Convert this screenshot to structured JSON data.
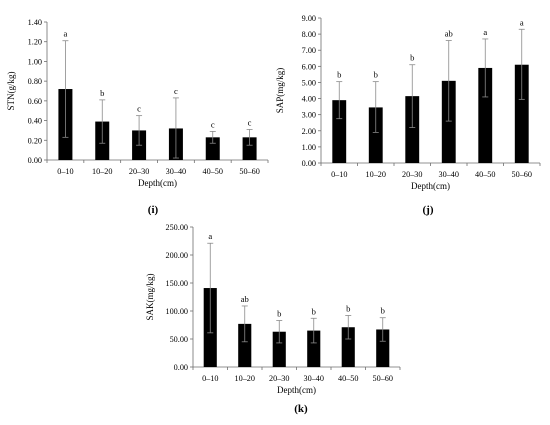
{
  "chart_data": [
    {
      "type": "bar",
      "panel_label": "(i)",
      "categories": [
        "0–10",
        "10–20",
        "20–30",
        "30–40",
        "40–50",
        "50–60"
      ],
      "values": [
        0.72,
        0.39,
        0.3,
        0.32,
        0.23,
        0.23
      ],
      "error_upper": [
        1.21,
        0.61,
        0.45,
        0.63,
        0.29,
        0.31
      ],
      "error_lower": [
        0.23,
        0.17,
        0.15,
        0.02,
        0.17,
        0.15
      ],
      "significance_letters": [
        "a",
        "b",
        "c",
        "c",
        "c",
        "c"
      ],
      "ylabel": "STN(g/kg)",
      "xlabel": "Depth(cm)",
      "ylim": [
        0,
        1.4
      ],
      "yticks": [
        "0.00",
        "0.20",
        "0.40",
        "0.60",
        "0.80",
        "1.00",
        "1.20",
        "1.40"
      ],
      "grid": false,
      "legend": "none",
      "bar_color": "#000000"
    },
    {
      "type": "bar",
      "panel_label": "(j)",
      "categories": [
        "0–10",
        "10–20",
        "20–30",
        "30–40",
        "40–50",
        "50–60"
      ],
      "values": [
        3.9,
        3.45,
        4.15,
        5.1,
        5.9,
        6.1
      ],
      "error_upper": [
        5.05,
        5.05,
        6.1,
        7.6,
        7.7,
        8.3
      ],
      "error_lower": [
        2.75,
        1.9,
        2.2,
        2.6,
        4.1,
        3.95
      ],
      "significance_letters": [
        "b",
        "b",
        "b",
        "ab",
        "a",
        "a"
      ],
      "ylabel": "SAP(mg/kg)",
      "xlabel": "Depth(cm)",
      "ylim": [
        0,
        9
      ],
      "yticks": [
        "0.00",
        "1.00",
        "2.00",
        "3.00",
        "4.00",
        "5.00",
        "6.00",
        "7.00",
        "8.00",
        "9.00"
      ],
      "grid": false,
      "legend": "none",
      "bar_color": "#000000"
    },
    {
      "type": "bar",
      "panel_label": "(k)",
      "categories": [
        "0–10",
        "10–20",
        "20–30",
        "30–40",
        "40–50",
        "50–60"
      ],
      "values": [
        141,
        77,
        63,
        65,
        71,
        67
      ],
      "error_upper": [
        221,
        109,
        83,
        87,
        92,
        88
      ],
      "error_lower": [
        61,
        45,
        43,
        43,
        50,
        46
      ],
      "significance_letters": [
        "a",
        "ab",
        "b",
        "b",
        "b",
        "b"
      ],
      "ylabel": "SAK(mg/kg)",
      "xlabel": "Depth(cm)",
      "ylim": [
        0,
        250
      ],
      "yticks": [
        "0.00",
        "50.00",
        "100.00",
        "150.00",
        "200.00",
        "250.00"
      ],
      "grid": false,
      "legend": "none",
      "bar_color": "#000000"
    }
  ]
}
